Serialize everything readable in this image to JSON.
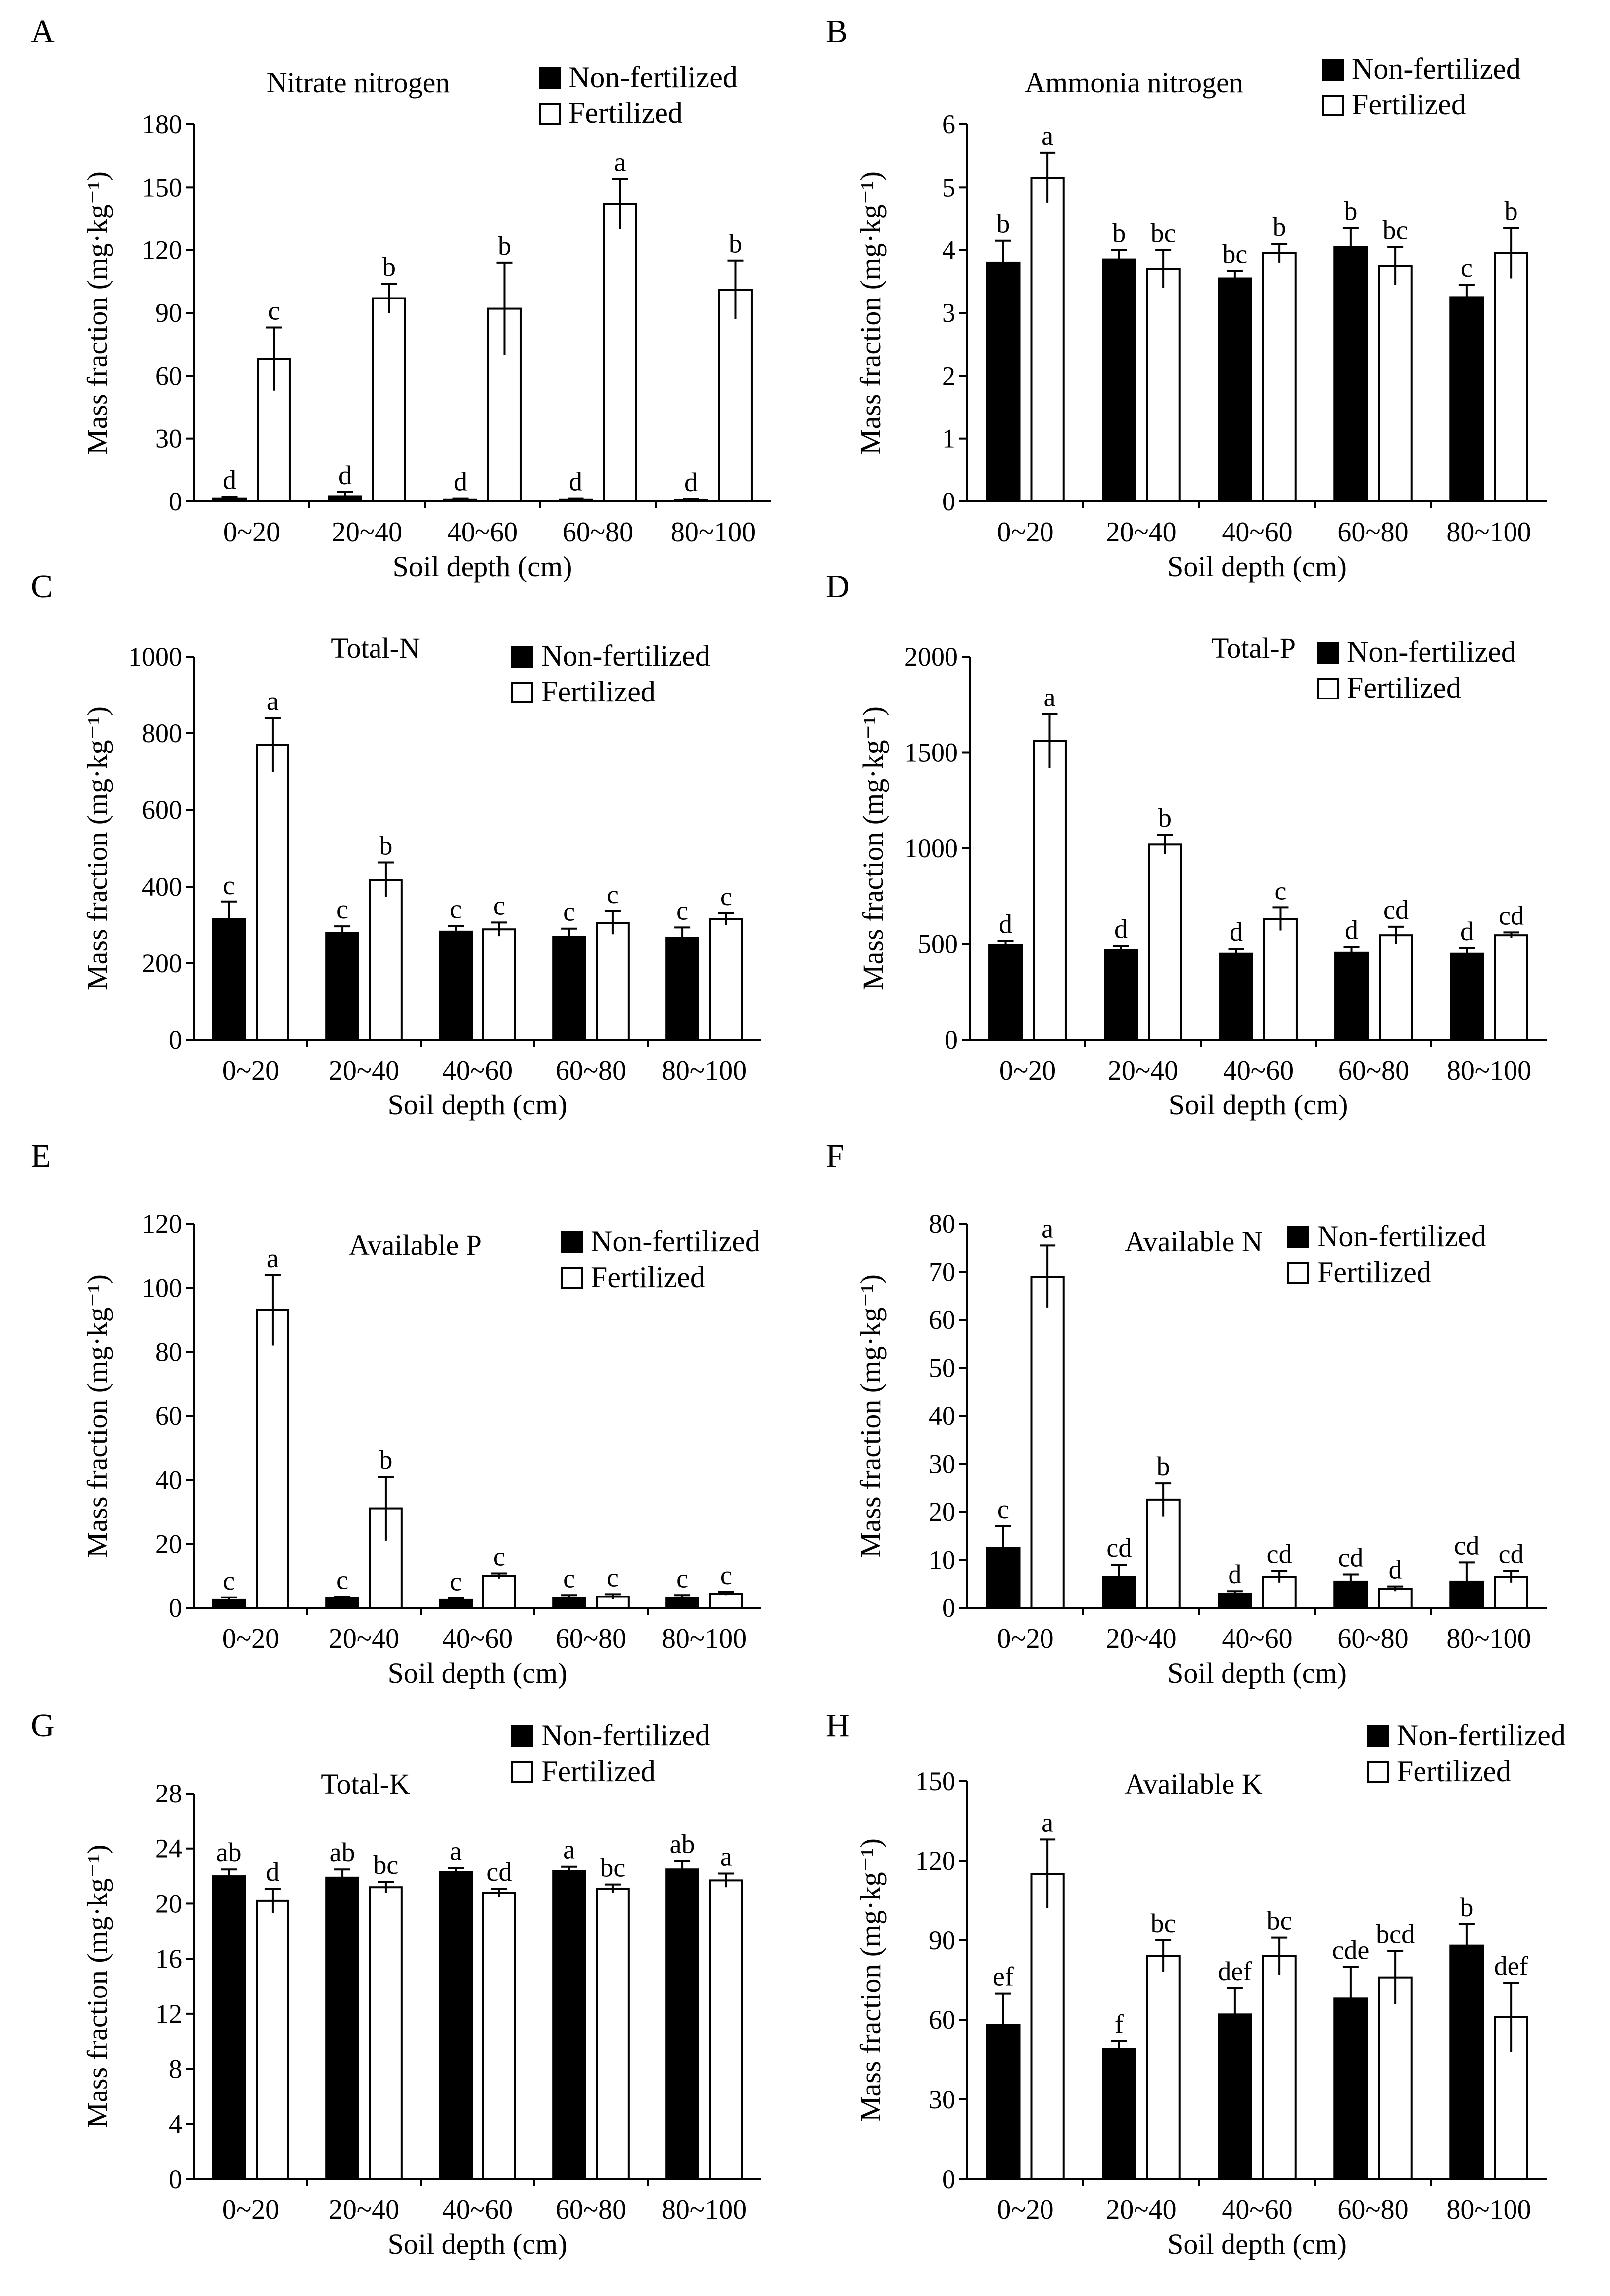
{
  "figure": {
    "xlabel": "Soil depth (cm)",
    "ylabel": "Mass fraction (mg·kg⁻¹)",
    "categories": [
      "0~20",
      "20~40",
      "40~60",
      "60~80",
      "80~100"
    ],
    "series_names": [
      "Non-fertilized",
      "Fertilized"
    ],
    "colors": {
      "non_fertilized": "#000000",
      "fertilized": "#ffffff",
      "axis": "#000000"
    }
  },
  "chart_data": [
    {
      "panel": "A",
      "type": "bar",
      "title": "Nitrate nitrogen",
      "categories": [
        "0~20",
        "20~40",
        "40~60",
        "60~80",
        "80~100"
      ],
      "xlabel": "Soil depth (cm)",
      "ylabel": "Mass fraction (mg·kg⁻¹)",
      "ylim": [
        0,
        180
      ],
      "yticks": [
        0,
        30,
        60,
        90,
        120,
        150,
        180
      ],
      "series": [
        {
          "name": "Non-fertilized",
          "values": [
            1.5,
            2.5,
            1.0,
            1.0,
            0.8
          ],
          "errors": [
            0.8,
            2.0,
            0.5,
            0.5,
            0.4
          ],
          "labels": [
            "d",
            "d",
            "d",
            "d",
            "d"
          ]
        },
        {
          "name": "Fertilized",
          "values": [
            68,
            97,
            92,
            142,
            101
          ],
          "errors": [
            15,
            7,
            22,
            12,
            14
          ],
          "labels": [
            "c",
            "b",
            "b",
            "a",
            "b"
          ]
        }
      ]
    },
    {
      "panel": "B",
      "type": "bar",
      "title": "Ammonia nitrogen",
      "categories": [
        "0~20",
        "20~40",
        "40~60",
        "60~80",
        "80~100"
      ],
      "xlabel": "Soil depth (cm)",
      "ylabel": "Mass fraction (mg·kg⁻¹)",
      "ylim": [
        0,
        6
      ],
      "yticks": [
        0,
        1,
        2,
        3,
        4,
        5,
        6
      ],
      "series": [
        {
          "name": "Non-fertilized",
          "values": [
            3.8,
            3.85,
            3.55,
            4.05,
            3.25
          ],
          "errors": [
            0.35,
            0.15,
            0.12,
            0.3,
            0.2
          ],
          "labels": [
            "b",
            "b",
            "bc",
            "b",
            "c"
          ]
        },
        {
          "name": "Fertilized",
          "values": [
            5.15,
            3.7,
            3.95,
            3.75,
            3.95
          ],
          "errors": [
            0.4,
            0.3,
            0.15,
            0.3,
            0.4
          ],
          "labels": [
            "a",
            "bc",
            "b",
            "bc",
            "b"
          ]
        }
      ]
    },
    {
      "panel": "C",
      "type": "bar",
      "title": "Total-N",
      "categories": [
        "0~20",
        "20~40",
        "40~60",
        "60~80",
        "80~100"
      ],
      "xlabel": "Soil depth (cm)",
      "ylabel": "Mass fraction (mg·kg⁻¹)",
      "ylim": [
        0,
        1000
      ],
      "yticks": [
        0,
        200,
        400,
        600,
        800,
        1000
      ],
      "series": [
        {
          "name": "Non-fertilized",
          "values": [
            315,
            278,
            282,
            268,
            265
          ],
          "errors": [
            45,
            18,
            15,
            22,
            28
          ],
          "labels": [
            "c",
            "c",
            "c",
            "c",
            "c"
          ]
        },
        {
          "name": "Fertilized",
          "values": [
            770,
            418,
            288,
            305,
            315
          ],
          "errors": [
            70,
            45,
            18,
            30,
            15
          ],
          "labels": [
            "a",
            "b",
            "c",
            "c",
            "c"
          ]
        }
      ]
    },
    {
      "panel": "D",
      "type": "bar",
      "title": "Total-P",
      "categories": [
        "0~20",
        "20~40",
        "40~60",
        "60~80",
        "80~100"
      ],
      "xlabel": "Soil depth (cm)",
      "ylabel": "Mass fraction (mg·kg⁻¹)",
      "ylim": [
        0,
        2000
      ],
      "yticks": [
        0,
        500,
        1000,
        1500,
        2000
      ],
      "series": [
        {
          "name": "Non-fertilized",
          "values": [
            495,
            470,
            450,
            455,
            450
          ],
          "errors": [
            20,
            20,
            25,
            30,
            28
          ],
          "labels": [
            "d",
            "d",
            "d",
            "d",
            "d"
          ]
        },
        {
          "name": "Fertilized",
          "values": [
            1560,
            1020,
            630,
            545,
            545
          ],
          "errors": [
            140,
            50,
            60,
            45,
            15
          ],
          "labels": [
            "a",
            "b",
            "c",
            "cd",
            "cd"
          ]
        }
      ]
    },
    {
      "panel": "E",
      "type": "bar",
      "title": "Available P",
      "categories": [
        "0~20",
        "20~40",
        "40~60",
        "60~80",
        "80~100"
      ],
      "xlabel": "Soil depth (cm)",
      "ylabel": "Mass fraction (mg·kg⁻¹)",
      "ylim": [
        0,
        120
      ],
      "yticks": [
        0,
        20,
        40,
        60,
        80,
        100,
        120
      ],
      "series": [
        {
          "name": "Non-fertilized",
          "values": [
            2.5,
            3.0,
            2.5,
            3.0,
            3.0
          ],
          "errors": [
            0.8,
            0.5,
            0.5,
            1.0,
            1.0
          ],
          "labels": [
            "c",
            "c",
            "c",
            "c",
            "c"
          ]
        },
        {
          "name": "Fertilized",
          "values": [
            93,
            31,
            10,
            3.5,
            4.5
          ],
          "errors": [
            11,
            10,
            0.8,
            0.8,
            0.5
          ],
          "labels": [
            "a",
            "b",
            "c",
            "c",
            "c"
          ]
        }
      ]
    },
    {
      "panel": "F",
      "type": "bar",
      "title": "Available N",
      "categories": [
        "0~20",
        "20~40",
        "40~60",
        "60~80",
        "80~100"
      ],
      "xlabel": "Soil depth (cm)",
      "ylabel": "Mass fraction (mg·kg⁻¹)",
      "ylim": [
        0,
        80
      ],
      "yticks": [
        0,
        10,
        20,
        30,
        40,
        50,
        60,
        70,
        80
      ],
      "series": [
        {
          "name": "Non-fertilized",
          "values": [
            12.5,
            6.5,
            3.0,
            5.5,
            5.5
          ],
          "errors": [
            4.5,
            2.5,
            0.5,
            1.5,
            4.0
          ],
          "labels": [
            "c",
            "cd",
            "d",
            "cd",
            "cd"
          ]
        },
        {
          "name": "Fertilized",
          "values": [
            69,
            22.5,
            6.5,
            4.0,
            6.5
          ],
          "errors": [
            6.5,
            3.5,
            1.2,
            0.5,
            1.2
          ],
          "labels": [
            "a",
            "b",
            "cd",
            "d",
            "cd"
          ]
        }
      ]
    },
    {
      "panel": "G",
      "type": "bar",
      "title": "Total-K",
      "categories": [
        "0~20",
        "20~40",
        "40~60",
        "60~80",
        "80~100"
      ],
      "xlabel": "Soil depth (cm)",
      "ylabel": "Mass fraction (mg·kg⁻¹)",
      "ylim": [
        0,
        28
      ],
      "yticks": [
        0,
        4,
        8,
        12,
        16,
        20,
        24,
        28
      ],
      "series": [
        {
          "name": "Non-fertilized",
          "values": [
            22.0,
            21.9,
            22.3,
            22.4,
            22.5
          ],
          "errors": [
            0.5,
            0.6,
            0.3,
            0.3,
            0.6
          ],
          "labels": [
            "ab",
            "ab",
            "a",
            "a",
            "ab"
          ]
        },
        {
          "name": "Fertilized",
          "values": [
            20.2,
            21.2,
            20.8,
            21.1,
            21.7
          ],
          "errors": [
            0.9,
            0.4,
            0.3,
            0.3,
            0.5
          ],
          "labels": [
            "d",
            "bc",
            "cd",
            "bc",
            "a"
          ]
        }
      ]
    },
    {
      "panel": "H",
      "type": "bar",
      "title": "Available K",
      "categories": [
        "0~20",
        "20~40",
        "40~60",
        "60~80",
        "80~100"
      ],
      "xlabel": "Soil depth (cm)",
      "ylabel": "Mass fraction (mg·kg⁻¹)",
      "ylim": [
        0,
        150
      ],
      "yticks": [
        0,
        30,
        60,
        90,
        120,
        150
      ],
      "series": [
        {
          "name": "Non-fertilized",
          "values": [
            58,
            49,
            62,
            68,
            88
          ],
          "errors": [
            12,
            3,
            10,
            12,
            8
          ],
          "labels": [
            "ef",
            "f",
            "def",
            "cde",
            "b"
          ]
        },
        {
          "name": "Fertilized",
          "values": [
            115,
            84,
            84,
            76,
            61
          ],
          "errors": [
            13,
            6,
            7,
            10,
            13
          ],
          "labels": [
            "a",
            "bc",
            "bc",
            "bcd",
            "def"
          ]
        }
      ]
    }
  ]
}
